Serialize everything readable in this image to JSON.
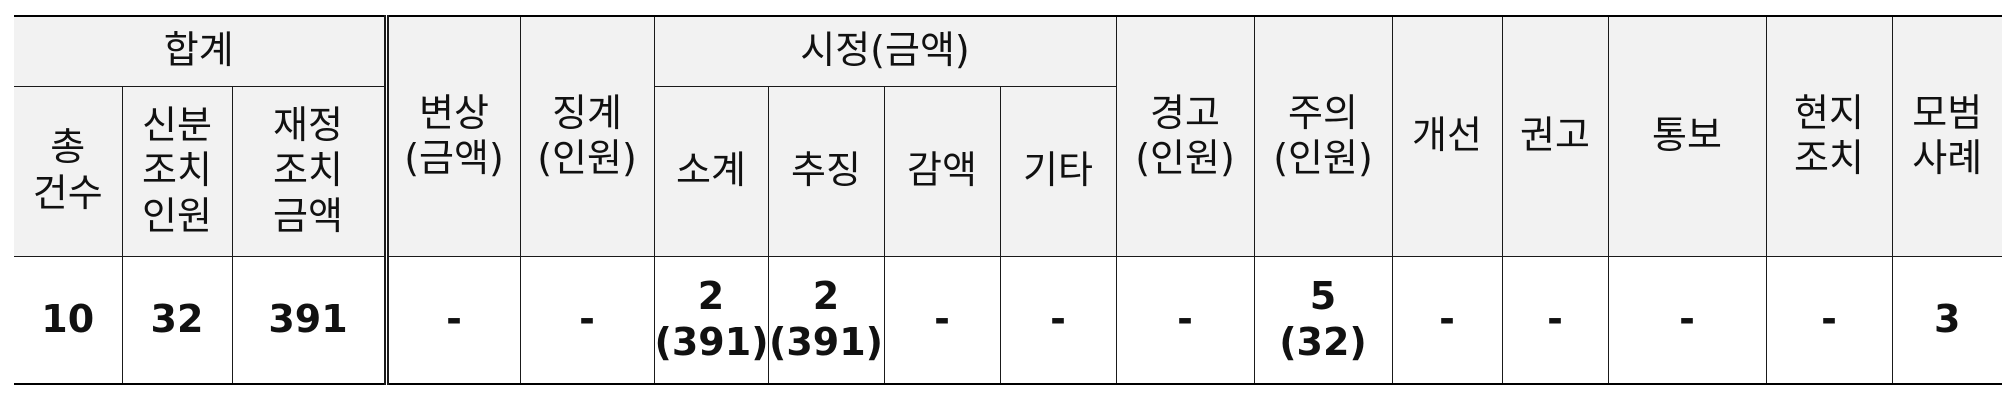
{
  "table": {
    "group_headers": {
      "total": "합계",
      "correction": "시정(금액)"
    },
    "headers": {
      "total_count": "총\n건수",
      "disciplinary_persons": "신분\n조치\n인원",
      "financial_amount": "재정\n조치\n금액",
      "compensation": "변상\n(금액)",
      "discipline": "징계\n(인원)",
      "subtotal": "소계",
      "recovery": "추징",
      "reduction": "감액",
      "other": "기타",
      "warning": "경고\n(인원)",
      "caution": "주의\n(인원)",
      "improvement": "개선",
      "recommendation": "권고",
      "notification": "통보",
      "onsite": "현지\n조치",
      "best_practice": "모범\n사례"
    },
    "values": {
      "total_count": "10",
      "disciplinary_persons": "32",
      "financial_amount": "391",
      "compensation": "-",
      "discipline": "-",
      "subtotal": "2\n(391)",
      "recovery": "2\n(391)",
      "reduction": "-",
      "other": "-",
      "warning": "-",
      "caution": "5\n(32)",
      "improvement": "-",
      "recommendation": "-",
      "notification": "-",
      "onsite": "-",
      "best_practice": "3"
    }
  }
}
